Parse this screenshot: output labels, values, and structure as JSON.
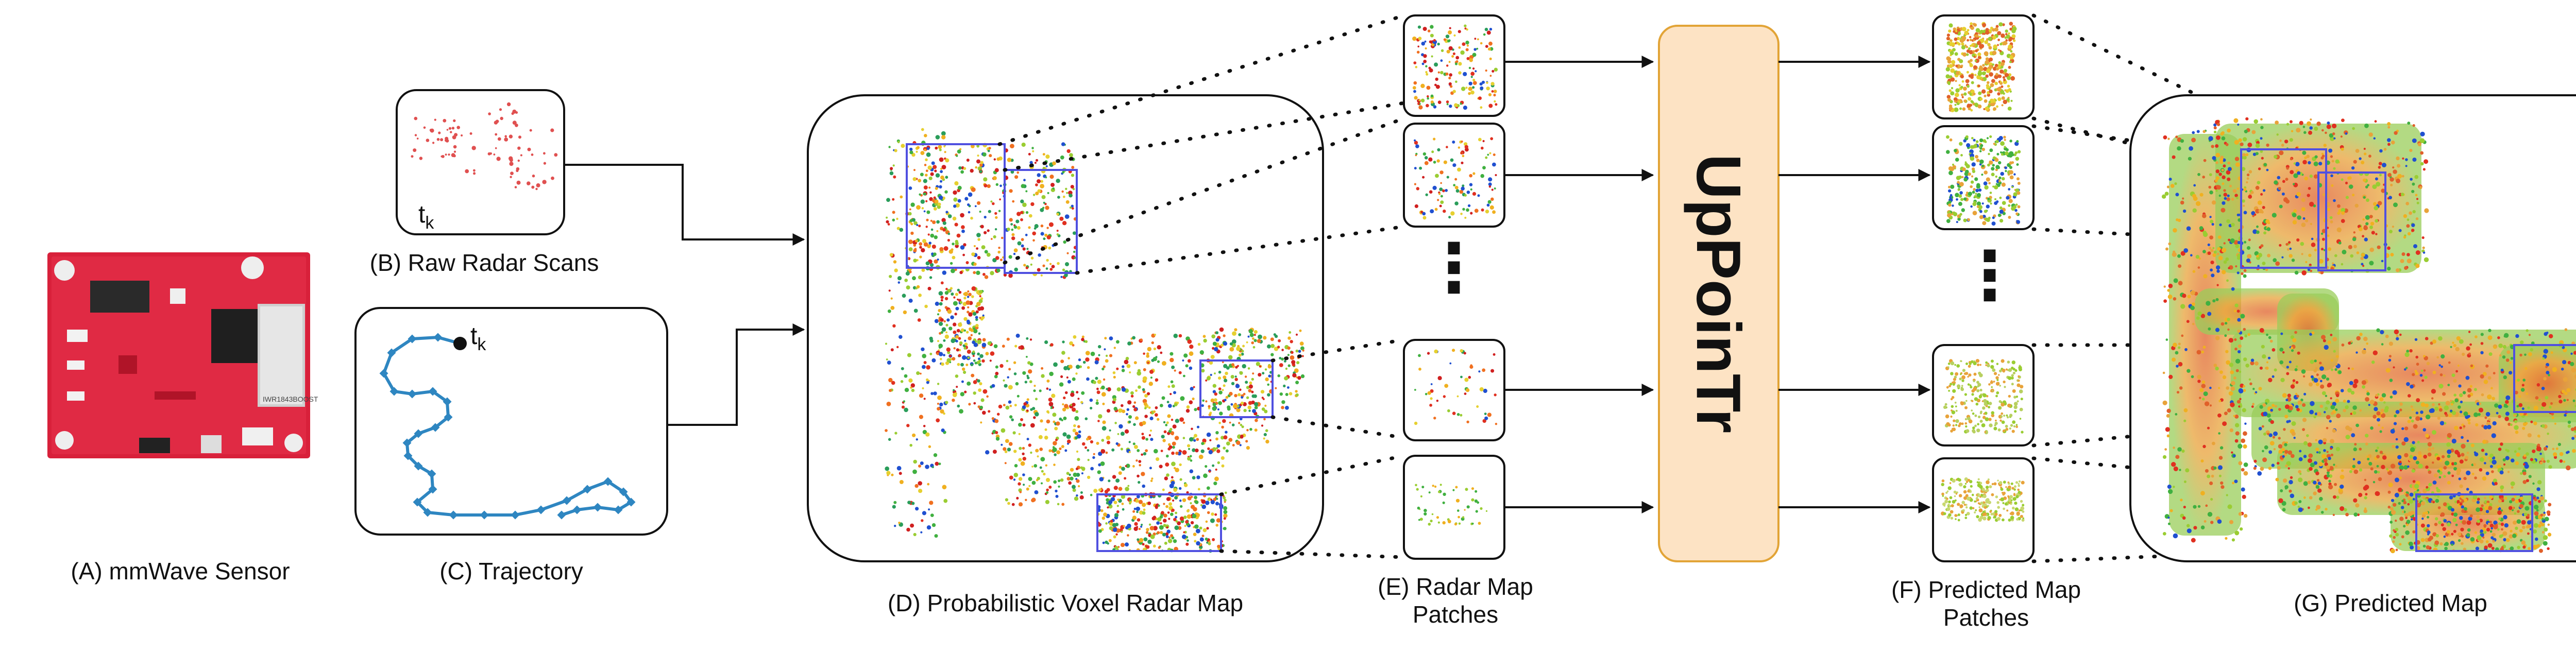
{
  "labels": {
    "a": "(A) mmWave Sensor",
    "b": "(B) Raw Radar Scans",
    "c": "(C) Trajectory",
    "d": "(D) Probabilistic Voxel Radar Map",
    "e_line1": "(E) Radar Map",
    "e_line2": "Patches",
    "f_line1": "(F) Predicted Map",
    "f_line2": "Patches",
    "g": "(G) Predicted Map"
  },
  "model_name": "UpPoinTr",
  "time_marker": {
    "base": "t",
    "sub": "k"
  },
  "sensor_board_text": "IWR1843BOOST",
  "ellipsis": "⋮",
  "colors": {
    "board": "#d8203a",
    "model_fill": "#fde3c4",
    "model_border": "#e2a437",
    "trajectory": "#2e86c1",
    "raw_points": "#e05050",
    "box": "#5050e0"
  },
  "icons": [
    "mmwave-sensor-board-icon",
    "arrow-icon"
  ]
}
